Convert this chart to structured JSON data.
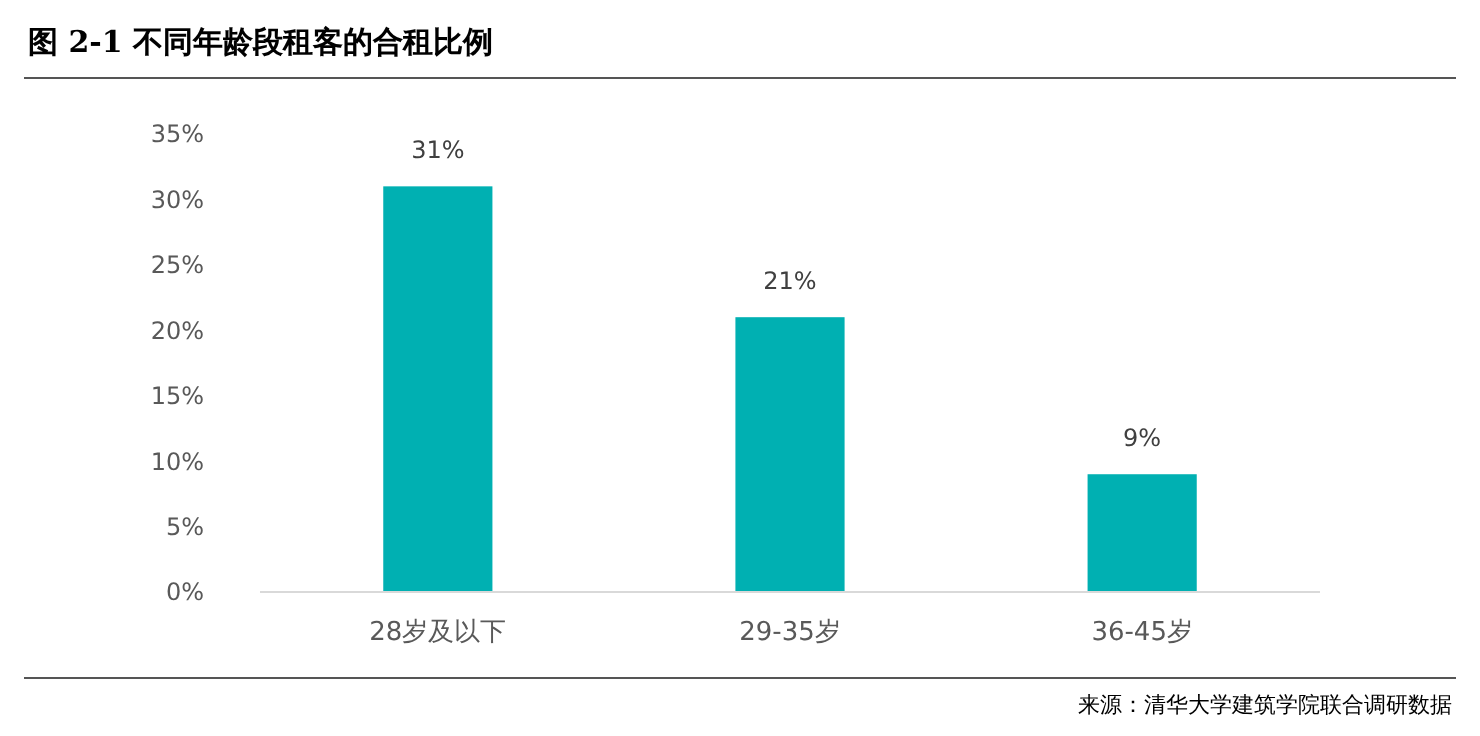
{
  "chart_data": {
    "type": "bar",
    "title": "图 2-1  不同年龄段租客的合租比例",
    "categories": [
      "28岁及以下",
      "29-35岁",
      "36-45岁"
    ],
    "values": [
      31,
      21,
      9
    ],
    "color": "#00b0b2",
    "value_labels": [
      "31%",
      "21%",
      "9%"
    ],
    "ylim": [
      0,
      35
    ],
    "yticks": [
      {
        "value": 0,
        "label": "0%"
      },
      {
        "value": 5,
        "label": "5%"
      },
      {
        "value": 10,
        "label": "10%"
      },
      {
        "value": 15,
        "label": "15%"
      },
      {
        "value": 20,
        "label": "20%"
      },
      {
        "value": 25,
        "label": "25%"
      },
      {
        "value": 30,
        "label": "30%"
      },
      {
        "value": 35,
        "label": "35%"
      }
    ],
    "grid": false,
    "annotations": [
      "来源：清华大学建筑学院联合调研数据"
    ]
  }
}
